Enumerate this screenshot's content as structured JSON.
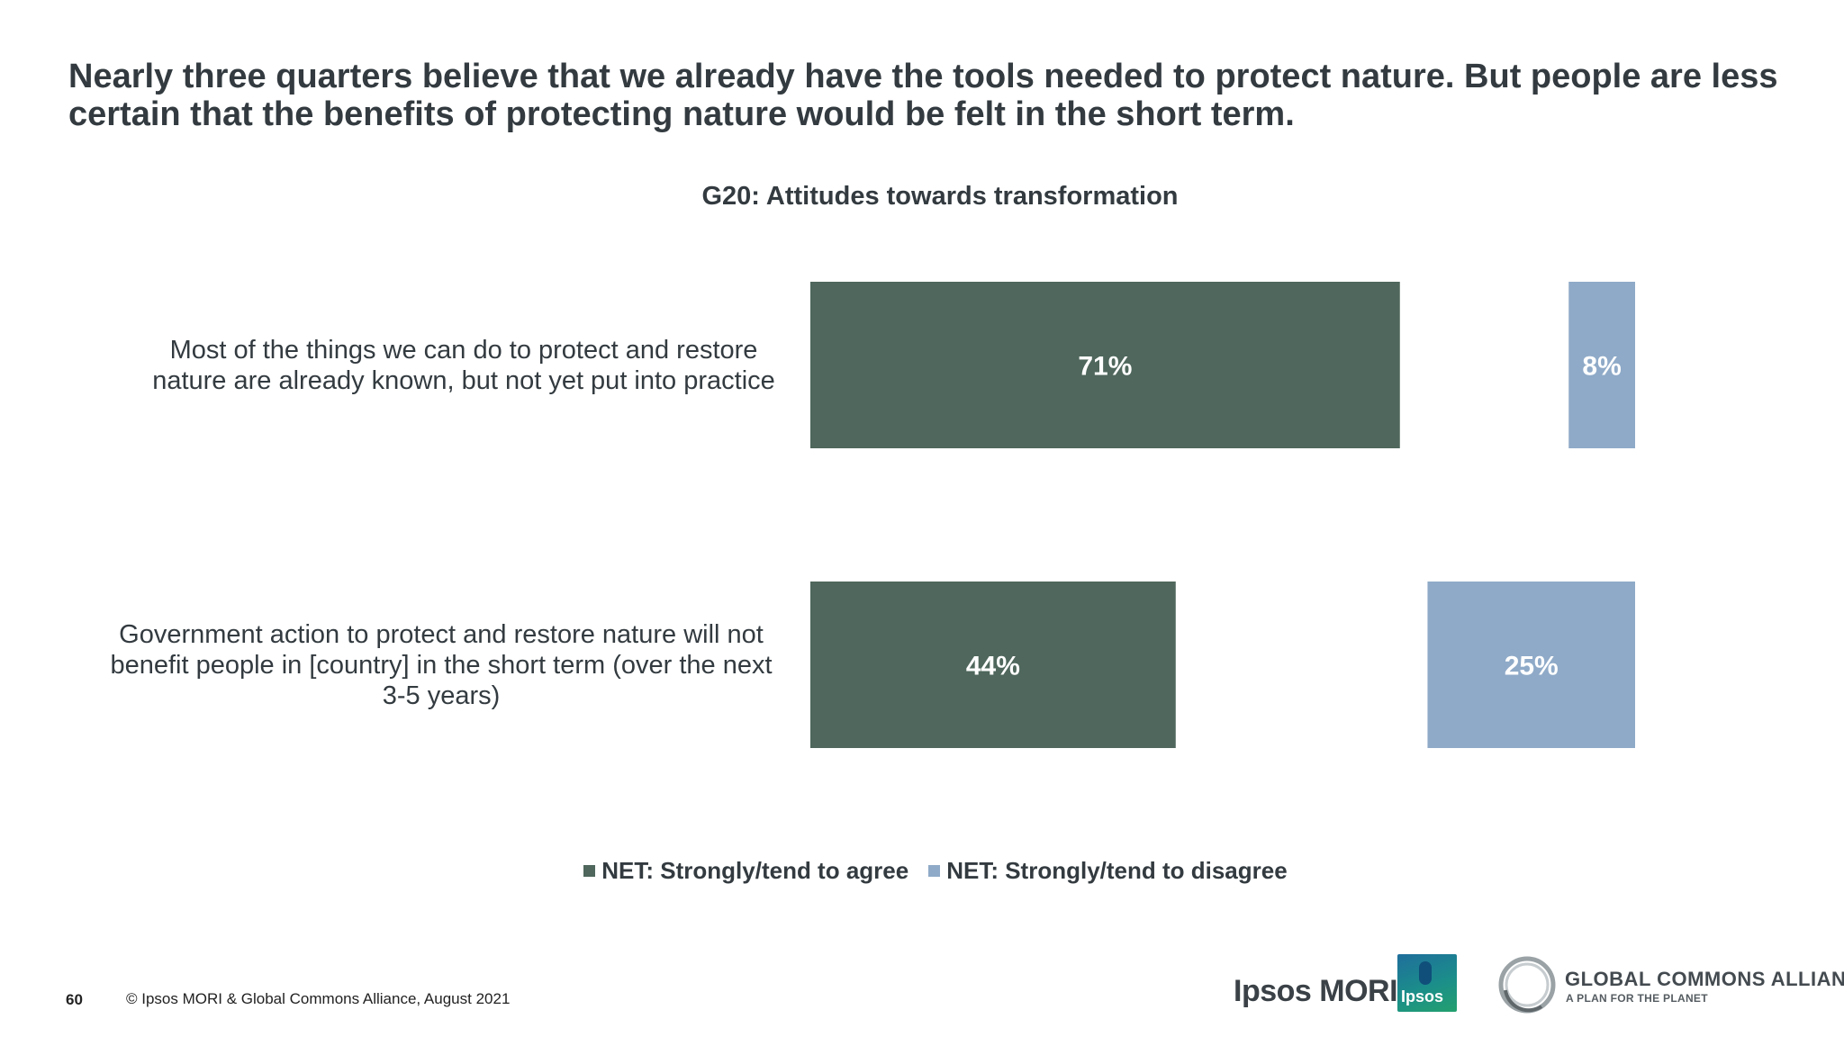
{
  "headline": "Nearly three quarters believe that we already have the tools needed to protect nature. But people are less certain that the benefits of protecting nature would be felt in the short term.",
  "colors": {
    "agree": "#4f675c",
    "disagree": "#8faac8",
    "text": "#333b40"
  },
  "chart_data": {
    "type": "bar",
    "orientation": "horizontal",
    "title": "G20: Attitudes towards transformation",
    "categories": [
      "Most of the things we can do to protect and restore nature are already known, but not yet put into practice",
      "Government action to protect and restore nature will not benefit people in [country] in the short term (over the next 3-5 years)"
    ],
    "series": [
      {
        "name": "NET: Strongly/tend to agree",
        "values": [
          71,
          44
        ],
        "labels": [
          "71%",
          "44%"
        ],
        "color": "#4f675c"
      },
      {
        "name": "NET: Strongly/tend to disagree",
        "values": [
          8,
          25
        ],
        "labels": [
          "8%",
          "25%"
        ],
        "color": "#8faac8"
      }
    ],
    "unit": "%",
    "legend_position": "bottom",
    "grid": false
  },
  "category_lines": [
    [
      "Most of the things we can do to protect and restore",
      "nature are already known, but not yet put into practice"
    ],
    [
      "Government action to protect and restore nature will not",
      "benefit people in [country] in the short term (over the next",
      "3-5 years)"
    ]
  ],
  "footer": {
    "page_number": "60",
    "copyright": "© Ipsos MORI & Global Commons Alliance, August 2021"
  },
  "logos": {
    "ipsos_mori": "Ipsos MORI",
    "ipsos_badge": "Ipsos",
    "gca_name": "GLOBAL COMMONS ALLIANCE",
    "gca_tagline": "A PLAN FOR THE PLANET"
  }
}
